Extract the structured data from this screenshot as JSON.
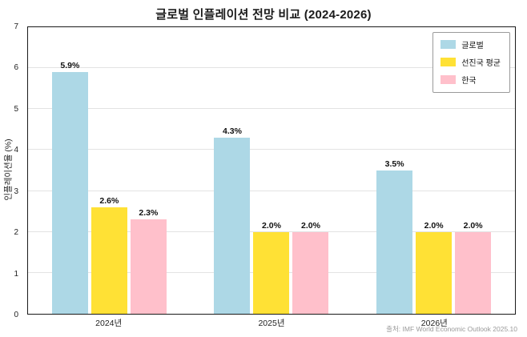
{
  "source": "출처: IMF World Economic Outlook 2025.10",
  "chart_data": {
    "type": "bar",
    "title": "글로벌 인플레이션 전망 비교 (2024-2026)",
    "xlabel": "",
    "ylabel": "인플레이션율 (%)",
    "ylim": [
      0,
      7
    ],
    "yticks": [
      0,
      1,
      2,
      3,
      4,
      5,
      6,
      7
    ],
    "grid": true,
    "legend_position": "upper right",
    "categories": [
      "2024년",
      "2025년",
      "2026년"
    ],
    "series": [
      {
        "name": "글로벌",
        "color": "#ADD8E6",
        "values": [
          5.9,
          4.3,
          3.5
        ],
        "labels": [
          "5.9%",
          "4.3%",
          "3.5%"
        ]
      },
      {
        "name": "선진국 평균",
        "color": "#FFE135",
        "values": [
          2.6,
          2.0,
          2.0
        ],
        "labels": [
          "2.6%",
          "2.0%",
          "2.0%"
        ]
      },
      {
        "name": "한국",
        "color": "#FFC0CB",
        "values": [
          2.3,
          2.0,
          2.0
        ],
        "labels": [
          "2.3%",
          "2.0%",
          "2.0%"
        ]
      }
    ]
  }
}
